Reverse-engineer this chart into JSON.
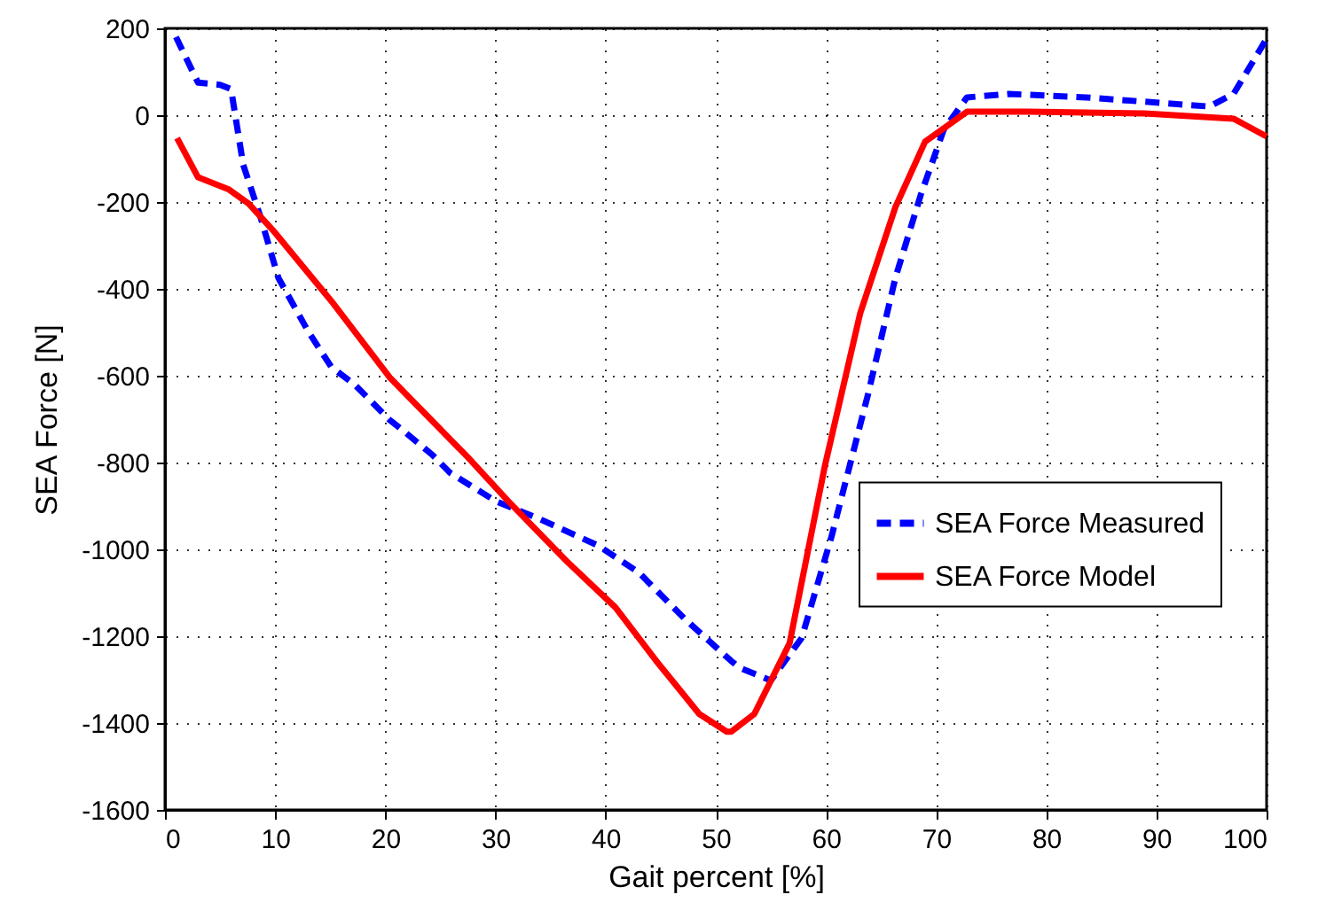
{
  "chart_data": {
    "type": "line",
    "xlabel": "Gait percent [%]",
    "ylabel": "SEA Force [N]",
    "xlim": [
      0,
      100
    ],
    "xticks": [
      0,
      10,
      20,
      30,
      40,
      50,
      60,
      70,
      80,
      90,
      100
    ],
    "ylim": [
      -1600,
      200
    ],
    "yticks": [
      -1600,
      -1400,
      -1200,
      -1000,
      -800,
      -600,
      -400,
      -200,
      0,
      200
    ],
    "grid": true,
    "legend": "right",
    "series": [
      {
        "name": "SEA Force Measured",
        "color": "#0000ff",
        "line_style": "dashed",
        "x": [
          1,
          3,
          5,
          6,
          7.1,
          8.7,
          10.3,
          13,
          15.1,
          17.2,
          20.4,
          21.6,
          24.3,
          25.9,
          30.1,
          34,
          39.3,
          43,
          47.3,
          51.4,
          52.2,
          55,
          57.8,
          60.5,
          63.8,
          66.3,
          68.6,
          70.7,
          72.8,
          76.6,
          83.6,
          90,
          94.8,
          97,
          100
        ],
        "values": [
          180,
          75,
          70,
          60,
          -114,
          -237,
          -375,
          -498,
          -580,
          -620,
          -702,
          -726,
          -783,
          -824,
          -890,
          -930,
          -991,
          -1053,
          -1163,
          -1257,
          -1273,
          -1302,
          -1204,
          -971,
          -645,
          -375,
          -184,
          -33,
          41,
          49,
          41,
          29,
          20,
          49,
          176
        ]
      },
      {
        "name": "SEA Force Model",
        "color": "#ff0000",
        "line_style": "solid",
        "x": [
          1.1,
          3,
          5.8,
          7.6,
          9.8,
          15.1,
          20.4,
          27.5,
          31.2,
          36.5,
          40.9,
          44.6,
          48.5,
          51,
          51.4,
          53.5,
          56.7,
          59.9,
          63.1,
          66.3,
          69,
          72.8,
          78.3,
          88.9,
          97,
          100
        ],
        "values": [
          -53,
          -143,
          -171,
          -204,
          -265,
          -428,
          -604,
          -788,
          -890,
          -1028,
          -1134,
          -1257,
          -1379,
          -1420,
          -1420,
          -1379,
          -1216,
          -808,
          -457,
          -212,
          -61,
          8,
          8,
          4,
          -8,
          -49
        ]
      }
    ]
  }
}
